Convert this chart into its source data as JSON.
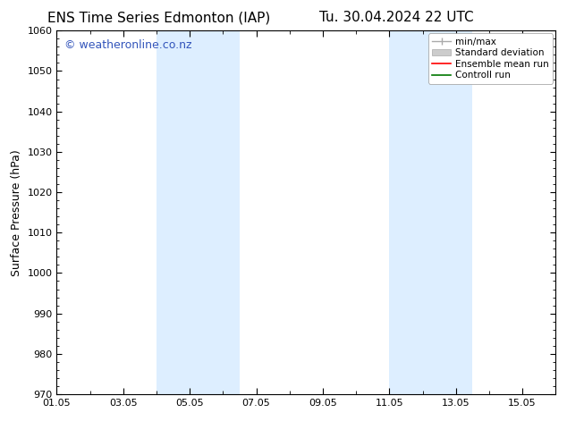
{
  "title_left": "ENS Time Series Edmonton (IAP)",
  "title_right": "Tu. 30.04.2024 22 UTC",
  "ylabel": "Surface Pressure (hPa)",
  "ylim": [
    970,
    1060
  ],
  "yticks": [
    970,
    980,
    990,
    1000,
    1010,
    1020,
    1030,
    1040,
    1050,
    1060
  ],
  "xlim": [
    0,
    15
  ],
  "xtick_positions": [
    0,
    2,
    4,
    6,
    8,
    10,
    12,
    14
  ],
  "xtick_labels": [
    "01.05",
    "03.05",
    "05.05",
    "07.05",
    "09.05",
    "11.05",
    "13.05",
    "15.05"
  ],
  "shaded_bands": [
    {
      "start": 3.0,
      "end": 5.5
    },
    {
      "start": 10.0,
      "end": 12.5
    }
  ],
  "shade_color": "#ddeeff",
  "watermark_text": "© weatheronline.co.nz",
  "watermark_color": "#3355bb",
  "watermark_fontsize": 9,
  "bg_color": "#ffffff",
  "axes_bg_color": "#ffffff",
  "title_fontsize": 11,
  "tick_label_fontsize": 8,
  "axis_label_fontsize": 9,
  "spine_color": "#000000",
  "legend_fontsize": 7.5,
  "legend_min_max_color": "#aaaaaa",
  "legend_std_color": "#cccccc",
  "legend_mean_color": "#ff0000",
  "legend_ctrl_color": "#007700"
}
